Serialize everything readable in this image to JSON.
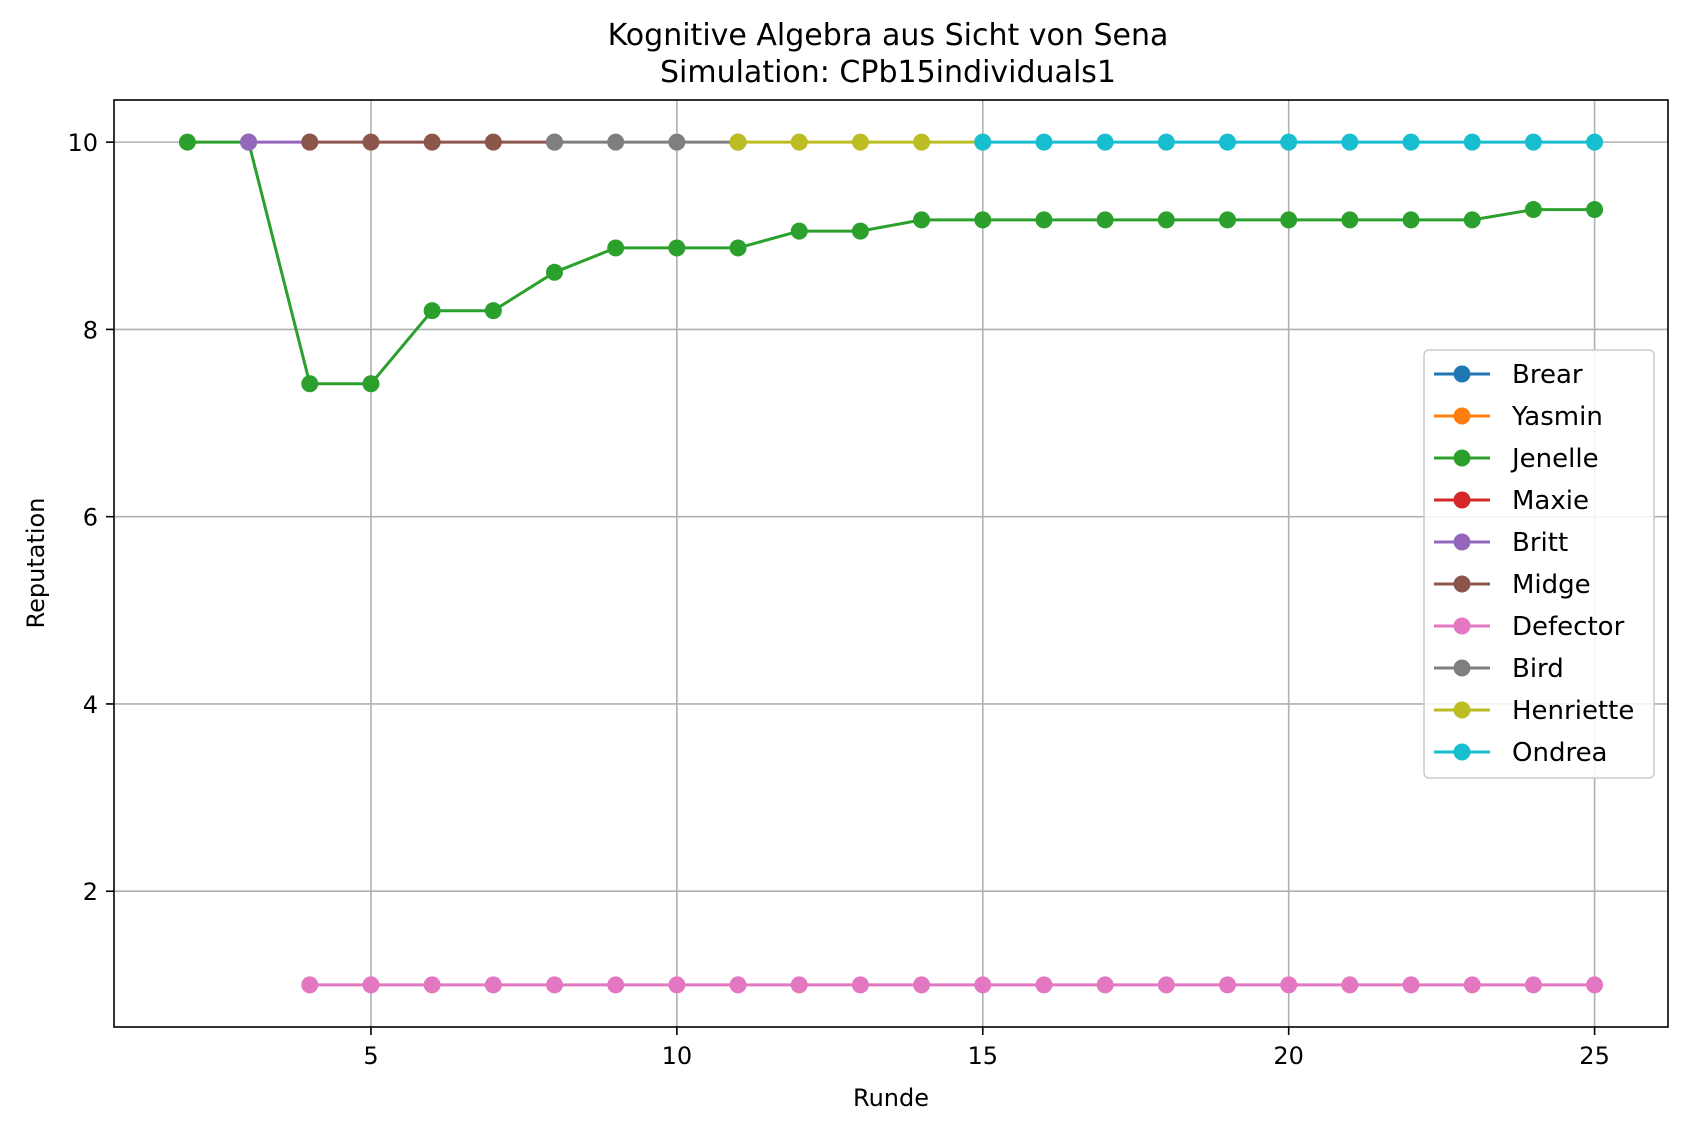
{
  "chart_data": {
    "type": "line",
    "title": "Kognitive Algebra aus Sicht von Sena",
    "subtitle": "Simulation: CPb15individuals1",
    "xlabel": "Runde",
    "ylabel": "Reputation",
    "xlim": [
      0.8,
      26.2
    ],
    "ylim": [
      0.55,
      10.45
    ],
    "xticks": [
      5,
      10,
      15,
      20,
      25
    ],
    "yticks": [
      2,
      4,
      6,
      8,
      10
    ],
    "grid": true,
    "legend_position": "center-right",
    "series": [
      {
        "name": "Brear",
        "color": "#1f77b4",
        "x": [],
        "y": []
      },
      {
        "name": "Yasmin",
        "color": "#ff7f0e",
        "x": [],
        "y": []
      },
      {
        "name": "Jenelle",
        "color": "#2ca02c",
        "x": [
          2,
          3,
          4,
          5,
          6,
          7,
          8,
          9,
          10,
          11,
          12,
          13,
          14,
          15,
          16,
          17,
          18,
          19,
          20,
          21,
          22,
          23,
          24,
          25
        ],
        "y": [
          10,
          10,
          7.42,
          7.42,
          8.2,
          8.2,
          8.61,
          8.87,
          8.87,
          8.87,
          9.05,
          9.05,
          9.17,
          9.17,
          9.17,
          9.17,
          9.17,
          9.17,
          9.17,
          9.17,
          9.17,
          9.17,
          9.28,
          9.28
        ]
      },
      {
        "name": "Maxie",
        "color": "#d62728",
        "x": [],
        "y": []
      },
      {
        "name": "Britt",
        "color": "#9467bd",
        "x": [
          3,
          4
        ],
        "y": [
          10,
          10
        ]
      },
      {
        "name": "Midge",
        "color": "#8c564b",
        "x": [
          4,
          5,
          6,
          7,
          8
        ],
        "y": [
          10,
          10,
          10,
          10,
          10
        ]
      },
      {
        "name": "Defector",
        "color": "#e377c2",
        "x": [
          4,
          5,
          6,
          7,
          8,
          9,
          10,
          11,
          12,
          13,
          14,
          15,
          16,
          17,
          18,
          19,
          20,
          21,
          22,
          23,
          24,
          25
        ],
        "y": [
          1,
          1,
          1,
          1,
          1,
          1,
          1,
          1,
          1,
          1,
          1,
          1,
          1,
          1,
          1,
          1,
          1,
          1,
          1,
          1,
          1,
          1
        ]
      },
      {
        "name": "Bird",
        "color": "#7f7f7f",
        "x": [
          8,
          9,
          10,
          11
        ],
        "y": [
          10,
          10,
          10,
          10
        ]
      },
      {
        "name": "Henriette",
        "color": "#bcbd22",
        "x": [
          11,
          12,
          13,
          14,
          15
        ],
        "y": [
          10,
          10,
          10,
          10,
          10
        ]
      },
      {
        "name": "Ondrea",
        "color": "#17becf",
        "x": [
          15,
          16,
          17,
          18,
          19,
          20,
          21,
          22,
          23,
          24,
          25
        ],
        "y": [
          10,
          10,
          10,
          10,
          10,
          10,
          10,
          10,
          10,
          10,
          10
        ]
      }
    ]
  }
}
